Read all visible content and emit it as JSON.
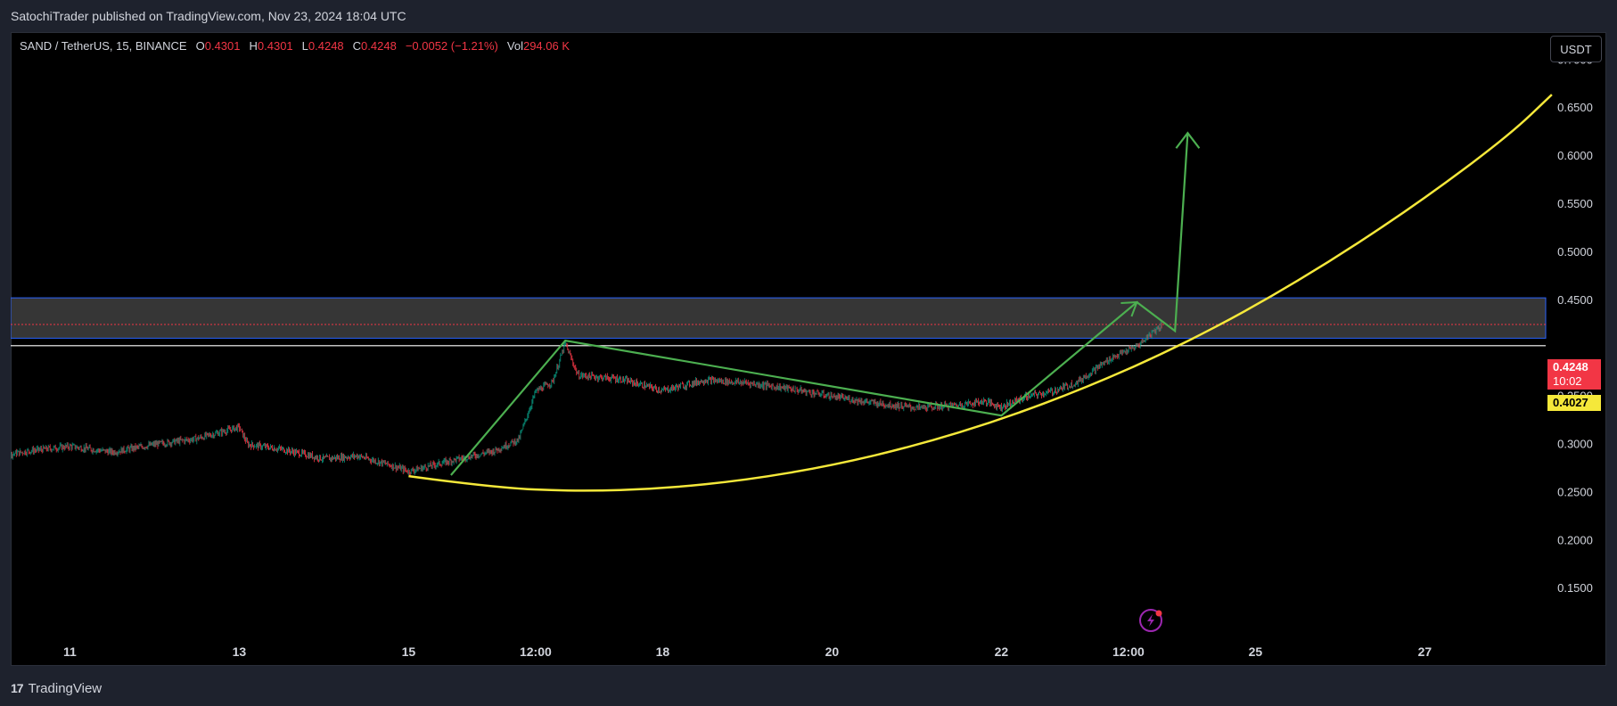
{
  "header": {
    "published": "SatochiTrader published on TradingView.com, Nov 23, 2024 18:04 UTC"
  },
  "legend": {
    "symbol": "SAND / TetherUS, 15, BINANCE",
    "o_label": "O",
    "o_value": "0.4301",
    "h_label": "H",
    "h_value": "0.4301",
    "l_label": "L",
    "l_value": "0.4248",
    "c_label": "C",
    "c_value": "0.4248",
    "change": "−0.0052 (−1.21%)",
    "vol_label": "Vol",
    "vol_value": "294.06 K"
  },
  "currency_button": "USDT",
  "price_badges": {
    "last_price": "0.4248",
    "countdown": "10:02",
    "level": "0.4027"
  },
  "footer": {
    "brand": "TradingView",
    "logo": "17"
  },
  "colors": {
    "up": "#089981",
    "down": "#f23645",
    "curve": "#f5e83a",
    "arrow": "#4caf50",
    "zone_border": "#2962ff",
    "level": "#ffffff"
  },
  "chart_data": {
    "type": "candlestick",
    "symbol": "SAND / TetherUS",
    "interval": "15",
    "exchange": "BINANCE",
    "y_ticks": [
      "0.7000",
      "0.6500",
      "0.6000",
      "0.5500",
      "0.5000",
      "0.4500",
      "0.3500",
      "0.3000",
      "0.2500",
      "0.2000",
      "0.1500"
    ],
    "x_ticks": [
      {
        "label": "11",
        "day": 11
      },
      {
        "label": "13",
        "day": 13
      },
      {
        "label": "15",
        "day": 15
      },
      {
        "label": "12:00",
        "day": 16.5
      },
      {
        "label": "18",
        "day": 18
      },
      {
        "label": "20",
        "day": 20
      },
      {
        "label": "22",
        "day": 22
      },
      {
        "label": "12:00",
        "day": 23.5
      },
      {
        "label": "25",
        "day": 25
      },
      {
        "label": "27",
        "day": 27
      }
    ],
    "price_path": [
      [
        10.0,
        0.285
      ],
      [
        10.5,
        0.293
      ],
      [
        11.0,
        0.298
      ],
      [
        11.5,
        0.292
      ],
      [
        12.0,
        0.3
      ],
      [
        12.5,
        0.306
      ],
      [
        13.0,
        0.318
      ],
      [
        13.1,
        0.3
      ],
      [
        13.5,
        0.295
      ],
      [
        14.0,
        0.285
      ],
      [
        14.4,
        0.288
      ],
      [
        14.8,
        0.278
      ],
      [
        15.0,
        0.272
      ],
      [
        15.5,
        0.283
      ],
      [
        16.0,
        0.293
      ],
      [
        16.3,
        0.305
      ],
      [
        16.5,
        0.355
      ],
      [
        16.7,
        0.365
      ],
      [
        16.85,
        0.405
      ],
      [
        17.0,
        0.372
      ],
      [
        17.5,
        0.368
      ],
      [
        18.0,
        0.356
      ],
      [
        18.5,
        0.367
      ],
      [
        19.0,
        0.364
      ],
      [
        19.5,
        0.358
      ],
      [
        20.0,
        0.35
      ],
      [
        20.5,
        0.343
      ],
      [
        21.0,
        0.338
      ],
      [
        21.5,
        0.341
      ],
      [
        21.8,
        0.345
      ],
      [
        22.0,
        0.339
      ],
      [
        22.3,
        0.35
      ],
      [
        22.6,
        0.355
      ],
      [
        22.9,
        0.365
      ],
      [
        23.1,
        0.378
      ],
      [
        23.3,
        0.39
      ],
      [
        23.6,
        0.402
      ],
      [
        23.8,
        0.418
      ],
      [
        23.9,
        0.4248
      ]
    ],
    "resistance_zone": [
      0.4105,
      0.4525
    ],
    "zone_mid_line": 0.4248,
    "horizontal_level": 0.4027,
    "cup_curve": [
      [
        15.0,
        0.267
      ],
      [
        16.0,
        0.255
      ],
      [
        17.0,
        0.251
      ],
      [
        18.0,
        0.254
      ],
      [
        19.0,
        0.263
      ],
      [
        20.0,
        0.278
      ],
      [
        21.0,
        0.299
      ],
      [
        22.0,
        0.326
      ],
      [
        23.0,
        0.359
      ],
      [
        24.0,
        0.398
      ],
      [
        25.0,
        0.444
      ],
      [
        26.0,
        0.497
      ],
      [
        27.0,
        0.556
      ],
      [
        28.0,
        0.622
      ],
      [
        28.5,
        0.664
      ]
    ],
    "arrow_path": [
      [
        15.5,
        0.268
      ],
      [
        16.85,
        0.408
      ],
      [
        22.0,
        0.33
      ],
      [
        23.6,
        0.448
      ],
      [
        24.05,
        0.418
      ],
      [
        24.2,
        0.624
      ]
    ],
    "ylim": [
      0.14,
      0.72
    ],
    "xlim": [
      10.0,
      29.0
    ]
  }
}
